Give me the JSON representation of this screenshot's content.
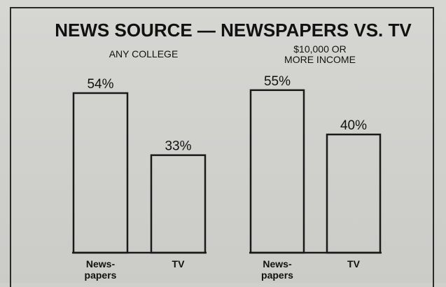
{
  "chart_data": {
    "type": "bar",
    "title": "NEWS SOURCE — NEWSPAPERS VS. TV",
    "ylim": [
      0,
      60
    ],
    "grid": false,
    "panels": [
      {
        "subtitle_lines": [
          "ANY COLLEGE"
        ],
        "categories": [
          [
            "News-",
            "papers"
          ],
          [
            "TV"
          ]
        ],
        "values": [
          54,
          33
        ],
        "value_labels": [
          "54%",
          "33%"
        ]
      },
      {
        "subtitle_lines": [
          "$10,000 OR",
          "MORE INCOME"
        ],
        "categories": [
          [
            "News-",
            "papers"
          ],
          [
            "TV"
          ]
        ],
        "values": [
          55,
          40
        ],
        "value_labels": [
          "55%",
          "40%"
        ]
      }
    ]
  }
}
